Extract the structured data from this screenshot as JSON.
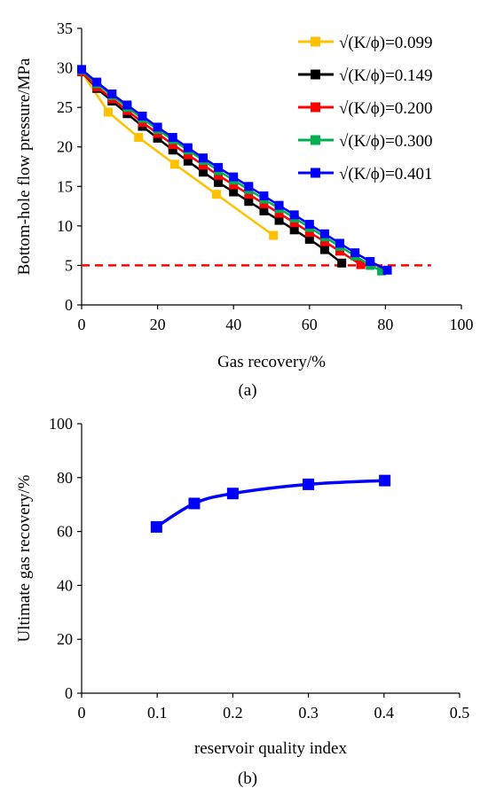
{
  "chart_data": [
    {
      "type": "line",
      "panel_label": "(a)",
      "xlabel": "Gas recovery/%",
      "ylabel": "Bottom-hole flow pressure/MPa",
      "xlim": [
        0,
        100
      ],
      "ylim": [
        0,
        35
      ],
      "xticks": [
        0,
        20,
        40,
        60,
        80,
        100
      ],
      "yticks": [
        0,
        5,
        10,
        15,
        20,
        25,
        30,
        35
      ],
      "grid": false,
      "legend_position": "top-right",
      "reference_line": {
        "y": 5,
        "x_range": [
          0,
          92
        ],
        "color": "#ff0000",
        "style": "dashed"
      },
      "series": [
        {
          "name": "√(K/ϕ)=0.099",
          "color": "#ffc000",
          "x": [
            0,
            7,
            15,
            24.5,
            35.5,
            50.5
          ],
          "y": [
            29.5,
            24.4,
            21.2,
            17.8,
            14.0,
            8.8
          ]
        },
        {
          "name": "√(K/ϕ)=0.149",
          "color": "#000000",
          "x": [
            0,
            4,
            8,
            12,
            16,
            20,
            24,
            28,
            32,
            36,
            40,
            44,
            48,
            52,
            56,
            60,
            64,
            68.5
          ],
          "y": [
            29.5,
            27.4,
            25.8,
            24.2,
            22.6,
            21.1,
            19.6,
            18.2,
            16.8,
            15.5,
            14.3,
            13.1,
            11.9,
            10.7,
            9.5,
            8.3,
            7.0,
            5.3
          ]
        },
        {
          "name": "√(K/ϕ)=0.200",
          "color": "#ff0000",
          "x": [
            0,
            4,
            8,
            12,
            16,
            20,
            24,
            28,
            32,
            36,
            40,
            44,
            48,
            52,
            56,
            60,
            64,
            68,
            73.5
          ],
          "y": [
            29.5,
            27.6,
            26.1,
            24.6,
            23.1,
            21.7,
            20.3,
            19.0,
            17.7,
            16.4,
            15.2,
            14.0,
            12.8,
            11.6,
            10.4,
            9.2,
            8.0,
            6.8,
            5.1
          ]
        },
        {
          "name": "√(K/ϕ)=0.300",
          "color": "#00b050",
          "x": [
            0,
            4,
            8,
            12,
            16,
            20,
            24,
            28,
            32,
            36,
            40,
            44,
            48,
            52,
            56,
            60,
            64,
            68,
            72,
            76,
            79
          ],
          "y": [
            29.7,
            28.0,
            26.5,
            25.0,
            23.6,
            22.2,
            20.9,
            19.6,
            18.3,
            17.0,
            15.8,
            14.6,
            13.4,
            12.2,
            11.0,
            9.8,
            8.6,
            7.4,
            6.2,
            5.0,
            4.3
          ]
        },
        {
          "name": "√(K/ϕ)=0.401",
          "color": "#0000ff",
          "x": [
            0,
            4,
            8,
            12,
            16,
            20,
            24,
            28,
            32,
            36,
            40,
            44,
            48,
            52,
            56,
            60,
            64,
            68,
            72,
            76,
            80.5
          ],
          "y": [
            29.8,
            28.2,
            26.7,
            25.3,
            23.9,
            22.5,
            21.2,
            19.9,
            18.6,
            17.4,
            16.2,
            15.0,
            13.8,
            12.6,
            11.4,
            10.2,
            9.0,
            7.8,
            6.6,
            5.5,
            4.4
          ]
        }
      ]
    },
    {
      "type": "line",
      "panel_label": "(b)",
      "xlabel": "reservoir quality index",
      "ylabel": "Ultimate gas recovery/%",
      "xlim": [
        0,
        0.5
      ],
      "ylim": [
        0,
        100
      ],
      "xticks": [
        "0",
        "0.1",
        "0.2",
        "0.3",
        "0.4",
        "0.5"
      ],
      "yticks": [
        0,
        20,
        40,
        60,
        80,
        100
      ],
      "grid": false,
      "series": [
        {
          "name": "",
          "color": "#0000ff",
          "x": [
            0.099,
            0.149,
            0.2,
            0.3,
            0.401
          ],
          "y": [
            61.7,
            70.4,
            74.1,
            77.5,
            78.9
          ]
        }
      ]
    }
  ]
}
